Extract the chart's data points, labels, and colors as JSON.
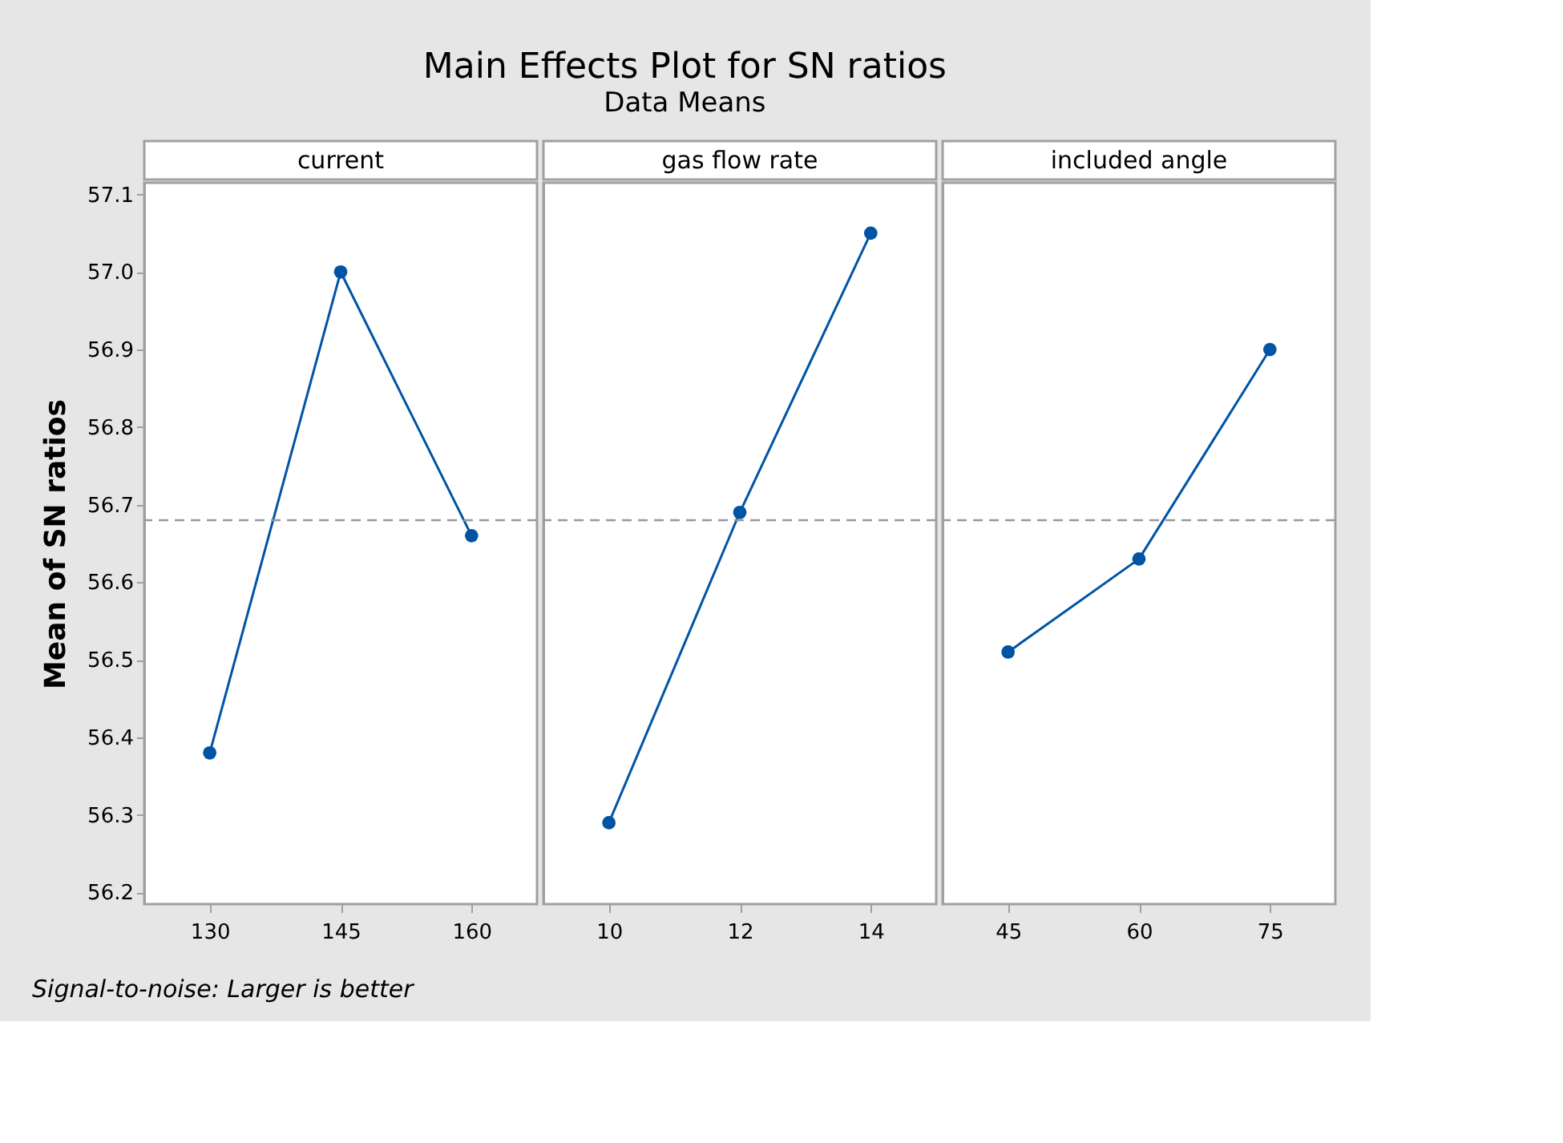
{
  "chart_data": [
    {
      "type": "other",
      "title": "Main Effects Plot for SN ratios",
      "subtitle": "Data Means",
      "annotations": [
        "Signal-to-noise: Larger is better"
      ]
    },
    {
      "type": "line",
      "xlabel": "current",
      "ylabel": "Mean of SN ratios",
      "categories": [
        "130",
        "145",
        "160"
      ],
      "values": [
        56.38,
        57.0,
        56.66
      ],
      "color": "#0054a6",
      "marker": "circle",
      "line_style": "solid",
      "ylim": [
        56.185,
        57.115
      ],
      "yticks": [
        56.2,
        56.3,
        56.4,
        56.5,
        56.6,
        56.7,
        56.8,
        56.9,
        {
          "value": 57.0,
          "label": "57.0"
        },
        57.1
      ],
      "ref_lines": [
        {
          "axis": "y",
          "value": 56.68,
          "color": "#999999",
          "line_style": "dashed"
        }
      ]
    },
    {
      "type": "line",
      "xlabel": "gas flow rate",
      "categories": [
        "10",
        "12",
        "14"
      ],
      "values": [
        56.29,
        56.69,
        57.05
      ],
      "color": "#0054a6",
      "marker": "circle",
      "line_style": "solid",
      "ylim": [
        56.185,
        57.115
      ],
      "tick_labels": "x",
      "ref_lines": [
        {
          "axis": "y",
          "value": 56.68,
          "color": "#999999",
          "line_style": "dashed"
        }
      ]
    },
    {
      "type": "line",
      "xlabel": "included angle",
      "categories": [
        "45",
        "60",
        "75"
      ],
      "values": [
        56.51,
        56.63,
        56.9
      ],
      "color": "#0054a6",
      "marker": "circle",
      "line_style": "solid",
      "ylim": [
        56.185,
        57.115
      ],
      "tick_labels": "x",
      "ref_lines": [
        {
          "axis": "y",
          "value": 56.68,
          "color": "#999999",
          "line_style": "dashed"
        }
      ]
    }
  ]
}
